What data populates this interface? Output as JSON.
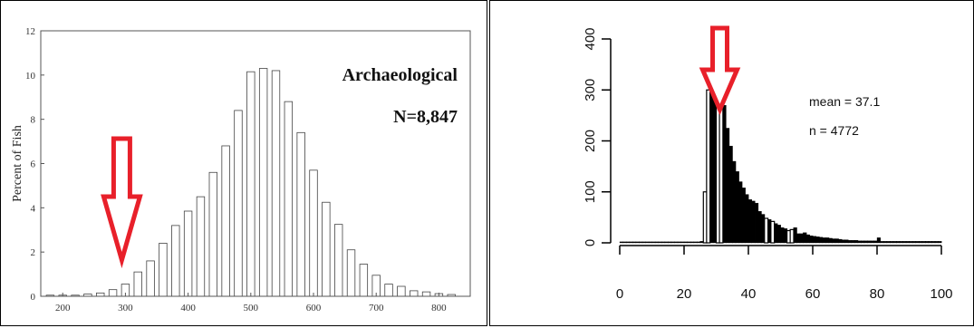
{
  "chart_data": [
    {
      "type": "bar",
      "ylabel": "Percent of Fish",
      "xlim": [
        165,
        850
      ],
      "ylim": [
        0,
        12
      ],
      "xticks": [
        200,
        300,
        400,
        500,
        600,
        700,
        800
      ],
      "yticks": [
        0,
        2,
        4,
        6,
        8,
        10,
        12
      ],
      "bin_width": 20,
      "x": [
        180,
        200,
        220,
        240,
        260,
        280,
        300,
        320,
        340,
        360,
        380,
        400,
        420,
        440,
        460,
        480,
        500,
        520,
        540,
        560,
        580,
        600,
        620,
        640,
        660,
        680,
        700,
        720,
        740,
        760,
        780,
        800,
        820
      ],
      "values": [
        0.05,
        0.05,
        0.05,
        0.1,
        0.15,
        0.3,
        0.55,
        1.1,
        1.6,
        2.4,
        3.2,
        3.85,
        4.5,
        5.6,
        6.8,
        8.4,
        10.15,
        10.3,
        10.2,
        8.8,
        7.4,
        5.7,
        4.25,
        3.25,
        2.1,
        1.45,
        0.95,
        0.55,
        0.45,
        0.25,
        0.2,
        0.12,
        0.08
      ],
      "annotations": [
        "Archaeological",
        "N=8,847"
      ],
      "marker_x": 300,
      "accent_color": "#e8202a"
    },
    {
      "type": "bar",
      "xlim": [
        0,
        100
      ],
      "ylim": [
        0,
        400
      ],
      "xticks": [
        0,
        20,
        40,
        60,
        80,
        100
      ],
      "yticks": [
        0,
        100,
        200,
        300,
        400
      ],
      "bin_width": 1,
      "x": [
        0,
        1,
        2,
        3,
        4,
        5,
        6,
        7,
        8,
        9,
        10,
        11,
        12,
        13,
        14,
        15,
        16,
        17,
        18,
        19,
        20,
        21,
        22,
        23,
        24,
        25,
        26,
        27,
        28,
        29,
        30,
        31,
        32,
        33,
        34,
        35,
        36,
        37,
        38,
        39,
        40,
        41,
        42,
        43,
        44,
        45,
        46,
        47,
        48,
        49,
        50,
        51,
        52,
        53,
        54,
        55,
        56,
        57,
        58,
        59,
        60,
        61,
        62,
        63,
        64,
        65,
        66,
        67,
        68,
        69,
        70,
        71,
        72,
        73,
        74,
        75,
        76,
        77,
        78,
        79,
        80,
        81,
        82,
        83,
        84,
        85,
        86,
        87,
        88,
        89,
        90,
        91,
        92,
        93,
        94,
        95,
        96,
        97,
        98,
        99
      ],
      "values": [
        2,
        2,
        2,
        2,
        2,
        2,
        2,
        2,
        2,
        2,
        2,
        2,
        2,
        2,
        2,
        2,
        2,
        2,
        2,
        2,
        2,
        2,
        2,
        2,
        2,
        3,
        100,
        300,
        320,
        400,
        390,
        330,
        270,
        225,
        190,
        160,
        140,
        120,
        108,
        95,
        85,
        82,
        78,
        62,
        56,
        48,
        46,
        42,
        38,
        35,
        30,
        28,
        24,
        26,
        30,
        18,
        18,
        20,
        16,
        14,
        13,
        12,
        11,
        10,
        10,
        9,
        8,
        8,
        7,
        6,
        6,
        5,
        5,
        5,
        4,
        4,
        4,
        4,
        4,
        4,
        10,
        3,
        3,
        3,
        3,
        3,
        3,
        3,
        3,
        3,
        3,
        3,
        3,
        3,
        3,
        3,
        3,
        3,
        3,
        3
      ],
      "outline_bars_x": [
        26,
        27,
        30,
        31,
        45,
        47,
        52,
        53
      ],
      "annotations": [
        "mean = 37.1",
        "n = 4772"
      ],
      "marker_x": 30,
      "accent_color": "#e8202a"
    }
  ]
}
